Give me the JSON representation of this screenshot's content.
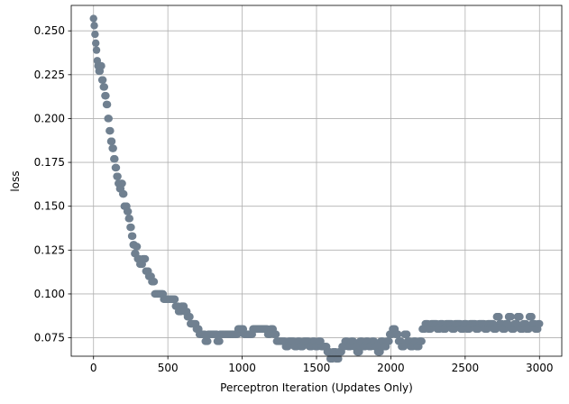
{
  "chart_data": {
    "type": "scatter",
    "title": "",
    "xlabel": "Perceptron Iteration (Updates Only)",
    "ylabel": "loss",
    "xlim": [
      -150,
      3150
    ],
    "ylim": [
      0.0645,
      0.2645
    ],
    "grid": true,
    "legend": "none",
    "marker_color": "#708090",
    "x_ticks": [
      {
        "value": 0,
        "label": "0"
      },
      {
        "value": 500,
        "label": "500"
      },
      {
        "value": 1000,
        "label": "1000"
      },
      {
        "value": 1500,
        "label": "1500"
      },
      {
        "value": 2000,
        "label": "2000"
      },
      {
        "value": 2500,
        "label": "2500"
      },
      {
        "value": 3000,
        "label": "3000"
      }
    ],
    "y_ticks": [
      {
        "value": 0.075,
        "label": "0.075"
      },
      {
        "value": 0.1,
        "label": "0.100"
      },
      {
        "value": 0.125,
        "label": "0.125"
      },
      {
        "value": 0.15,
        "label": "0.150"
      },
      {
        "value": 0.175,
        "label": "0.175"
      },
      {
        "value": 0.2,
        "label": "0.200"
      },
      {
        "value": 0.225,
        "label": "0.225"
      },
      {
        "value": 0.25,
        "label": "0.250"
      }
    ],
    "series": [
      {
        "x": [
          0,
          5,
          10,
          15,
          20,
          25,
          30,
          40,
          50,
          60,
          70,
          80,
          90,
          100,
          110,
          120,
          130,
          140,
          150,
          160,
          170,
          180,
          190,
          200,
          210,
          220,
          230,
          240,
          250,
          260,
          270,
          280,
          290,
          300,
          320,
          340,
          360,
          380,
          400,
          420,
          440,
          460,
          480,
          500,
          520,
          540,
          560,
          580,
          600,
          620,
          640,
          660,
          680,
          700,
          720,
          740,
          760,
          780,
          800,
          820,
          840,
          860,
          880,
          900,
          920,
          940,
          960,
          980,
          1000,
          1020,
          1040,
          1060,
          1080,
          1100,
          1120,
          1140,
          1160,
          1180,
          1200,
          1220,
          1240,
          1260,
          1280,
          1300,
          1320,
          1340,
          1360,
          1380,
          1400,
          1420,
          1440,
          1460,
          1480,
          1500,
          1520,
          1540,
          1560,
          1580,
          1600,
          1620,
          1640,
          1660,
          1680,
          1700,
          1720,
          1740,
          1760,
          1780,
          1800,
          1820,
          1840,
          1860,
          1880,
          1900,
          1920,
          1940,
          1960,
          1980,
          2000,
          2020,
          2040,
          2060,
          2080,
          2100,
          2120,
          2140,
          2160,
          2180,
          2200,
          2220,
          2240,
          2260,
          2280,
          2300,
          2320,
          2340,
          2360,
          2380,
          2400,
          2420,
          2440,
          2460,
          2480,
          2500,
          2520,
          2540,
          2560,
          2580,
          2600,
          2620,
          2640,
          2660,
          2680,
          2700,
          2720,
          2740,
          2760,
          2780,
          2800,
          2820,
          2840,
          2860,
          2880,
          2900,
          2920,
          2940,
          2960,
          2980,
          3000
        ],
        "y": [
          0.257,
          0.253,
          0.248,
          0.243,
          0.239,
          0.233,
          0.23,
          0.227,
          0.23,
          0.222,
          0.218,
          0.213,
          0.208,
          0.2,
          0.193,
          0.187,
          0.183,
          0.177,
          0.172,
          0.167,
          0.163,
          0.16,
          0.163,
          0.157,
          0.15,
          0.15,
          0.147,
          0.143,
          0.138,
          0.133,
          0.128,
          0.123,
          0.127,
          0.12,
          0.117,
          0.12,
          0.113,
          0.11,
          0.107,
          0.1,
          0.1,
          0.1,
          0.097,
          0.097,
          0.097,
          0.097,
          0.093,
          0.09,
          0.093,
          0.09,
          0.087,
          0.083,
          0.083,
          0.08,
          0.077,
          0.077,
          0.073,
          0.077,
          0.077,
          0.077,
          0.073,
          0.077,
          0.077,
          0.077,
          0.077,
          0.077,
          0.077,
          0.08,
          0.08,
          0.077,
          0.077,
          0.077,
          0.08,
          0.08,
          0.08,
          0.08,
          0.08,
          0.077,
          0.08,
          0.077,
          0.073,
          0.073,
          0.073,
          0.07,
          0.073,
          0.073,
          0.07,
          0.073,
          0.07,
          0.073,
          0.073,
          0.07,
          0.073,
          0.07,
          0.073,
          0.07,
          0.07,
          0.067,
          0.063,
          0.067,
          0.063,
          0.067,
          0.07,
          0.073,
          0.07,
          0.073,
          0.07,
          0.067,
          0.073,
          0.07,
          0.073,
          0.07,
          0.073,
          0.07,
          0.067,
          0.073,
          0.07,
          0.073,
          0.077,
          0.08,
          0.077,
          0.073,
          0.07,
          0.077,
          0.073,
          0.07,
          0.073,
          0.07,
          0.073,
          0.08,
          0.083,
          0.08,
          0.083,
          0.083,
          0.08,
          0.083,
          0.08,
          0.083,
          0.083,
          0.08,
          0.083,
          0.083,
          0.08,
          0.083,
          0.08,
          0.083,
          0.083,
          0.08,
          0.083,
          0.083,
          0.08,
          0.083,
          0.083,
          0.08,
          0.087,
          0.083,
          0.08,
          0.083,
          0.087,
          0.08,
          0.083,
          0.087,
          0.08,
          0.083,
          0.08,
          0.087,
          0.083,
          0.08,
          0.083
        ]
      }
    ]
  }
}
